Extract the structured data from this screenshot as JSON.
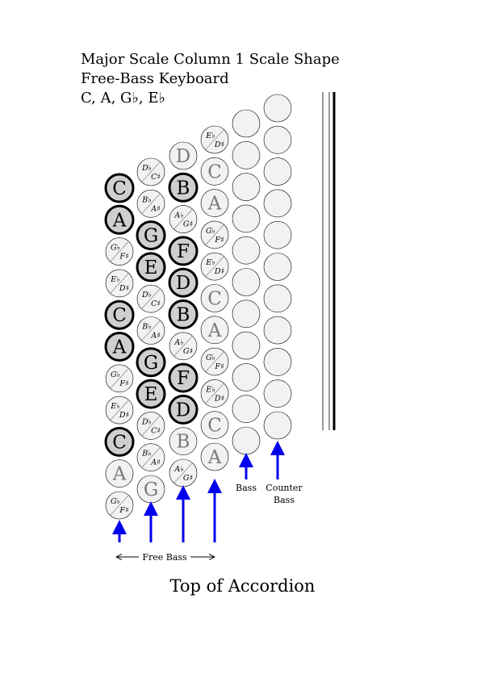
{
  "title": {
    "line1": "Major Scale Column 1 Scale Shape",
    "line2": "Free-Bass Keyboard",
    "line3": "C, A, G♭, E♭"
  },
  "bottom_title": "Top of Accordion",
  "labels": {
    "free_bass": "Free Bass",
    "bass": "Bass",
    "counter": "Counter",
    "counter_bass": "Bass"
  },
  "columns": [
    {
      "name": "column-1",
      "buttons": [
        {
          "type": "note",
          "label": "C",
          "highlight": true
        },
        {
          "type": "note",
          "label": "A",
          "highlight": true
        },
        {
          "type": "split",
          "top": "G♭",
          "bottom": "F♯",
          "highlight": false
        },
        {
          "type": "split",
          "top": "E♭",
          "bottom": "D♯",
          "highlight": false
        },
        {
          "type": "note",
          "label": "C",
          "highlight": true
        },
        {
          "type": "note",
          "label": "A",
          "highlight": true
        },
        {
          "type": "split",
          "top": "G♭",
          "bottom": "F♯",
          "highlight": false
        },
        {
          "type": "split",
          "top": "E♭",
          "bottom": "D♯",
          "highlight": false
        },
        {
          "type": "note",
          "label": "C",
          "highlight": true
        },
        {
          "type": "note",
          "label": "A",
          "highlight": false
        },
        {
          "type": "split",
          "top": "G♭",
          "bottom": "F♯",
          "highlight": false
        }
      ]
    },
    {
      "name": "column-2",
      "buttons": [
        {
          "type": "split",
          "top": "D♭",
          "bottom": "C♯",
          "highlight": false
        },
        {
          "type": "split",
          "top": "B♭",
          "bottom": "A♯",
          "highlight": false
        },
        {
          "type": "note",
          "label": "G",
          "highlight": true
        },
        {
          "type": "note",
          "label": "E",
          "highlight": true
        },
        {
          "type": "split",
          "top": "D♭",
          "bottom": "C♯",
          "highlight": false
        },
        {
          "type": "split",
          "top": "B♭",
          "bottom": "A♯",
          "highlight": false
        },
        {
          "type": "note",
          "label": "G",
          "highlight": true
        },
        {
          "type": "note",
          "label": "E",
          "highlight": true
        },
        {
          "type": "split",
          "top": "D♭",
          "bottom": "C♯",
          "highlight": false
        },
        {
          "type": "split",
          "top": "B♭",
          "bottom": "A♯",
          "highlight": false
        },
        {
          "type": "note",
          "label": "G",
          "highlight": false
        }
      ]
    },
    {
      "name": "column-3",
      "buttons": [
        {
          "type": "note",
          "label": "D",
          "highlight": false
        },
        {
          "type": "note",
          "label": "B",
          "highlight": true
        },
        {
          "type": "split",
          "top": "A♭",
          "bottom": "G♯",
          "highlight": false
        },
        {
          "type": "note",
          "label": "F",
          "highlight": true
        },
        {
          "type": "note",
          "label": "D",
          "highlight": true
        },
        {
          "type": "note",
          "label": "B",
          "highlight": true
        },
        {
          "type": "split",
          "top": "A♭",
          "bottom": "G♯",
          "highlight": false
        },
        {
          "type": "note",
          "label": "F",
          "highlight": true
        },
        {
          "type": "note",
          "label": "D",
          "highlight": true
        },
        {
          "type": "note",
          "label": "B",
          "highlight": false
        },
        {
          "type": "split",
          "top": "A♭",
          "bottom": "G♯",
          "highlight": false
        }
      ]
    },
    {
      "name": "column-4",
      "buttons": [
        {
          "type": "split",
          "top": "E♭",
          "bottom": "D♯",
          "highlight": false
        },
        {
          "type": "note",
          "label": "C",
          "highlight": false
        },
        {
          "type": "note",
          "label": "A",
          "highlight": false
        },
        {
          "type": "split",
          "top": "G♭",
          "bottom": "F♯",
          "highlight": false
        },
        {
          "type": "split",
          "top": "E♭",
          "bottom": "D♯",
          "highlight": false
        },
        {
          "type": "note",
          "label": "C",
          "highlight": false
        },
        {
          "type": "note",
          "label": "A",
          "highlight": false
        },
        {
          "type": "split",
          "top": "G♭",
          "bottom": "F♯",
          "highlight": false
        },
        {
          "type": "split",
          "top": "E♭",
          "bottom": "D♯",
          "highlight": false
        },
        {
          "type": "note",
          "label": "C",
          "highlight": false
        },
        {
          "type": "note",
          "label": "A",
          "highlight": false
        }
      ]
    },
    {
      "name": "column-5-bass",
      "count": 11
    },
    {
      "name": "column-6-counter-bass",
      "count": 11
    }
  ],
  "colors": {
    "highlight_fill": "#cfcfcf",
    "plain_fill": "#f2f2f2",
    "dim_text": "#7a7a7a",
    "arrow": "#0000ee"
  }
}
